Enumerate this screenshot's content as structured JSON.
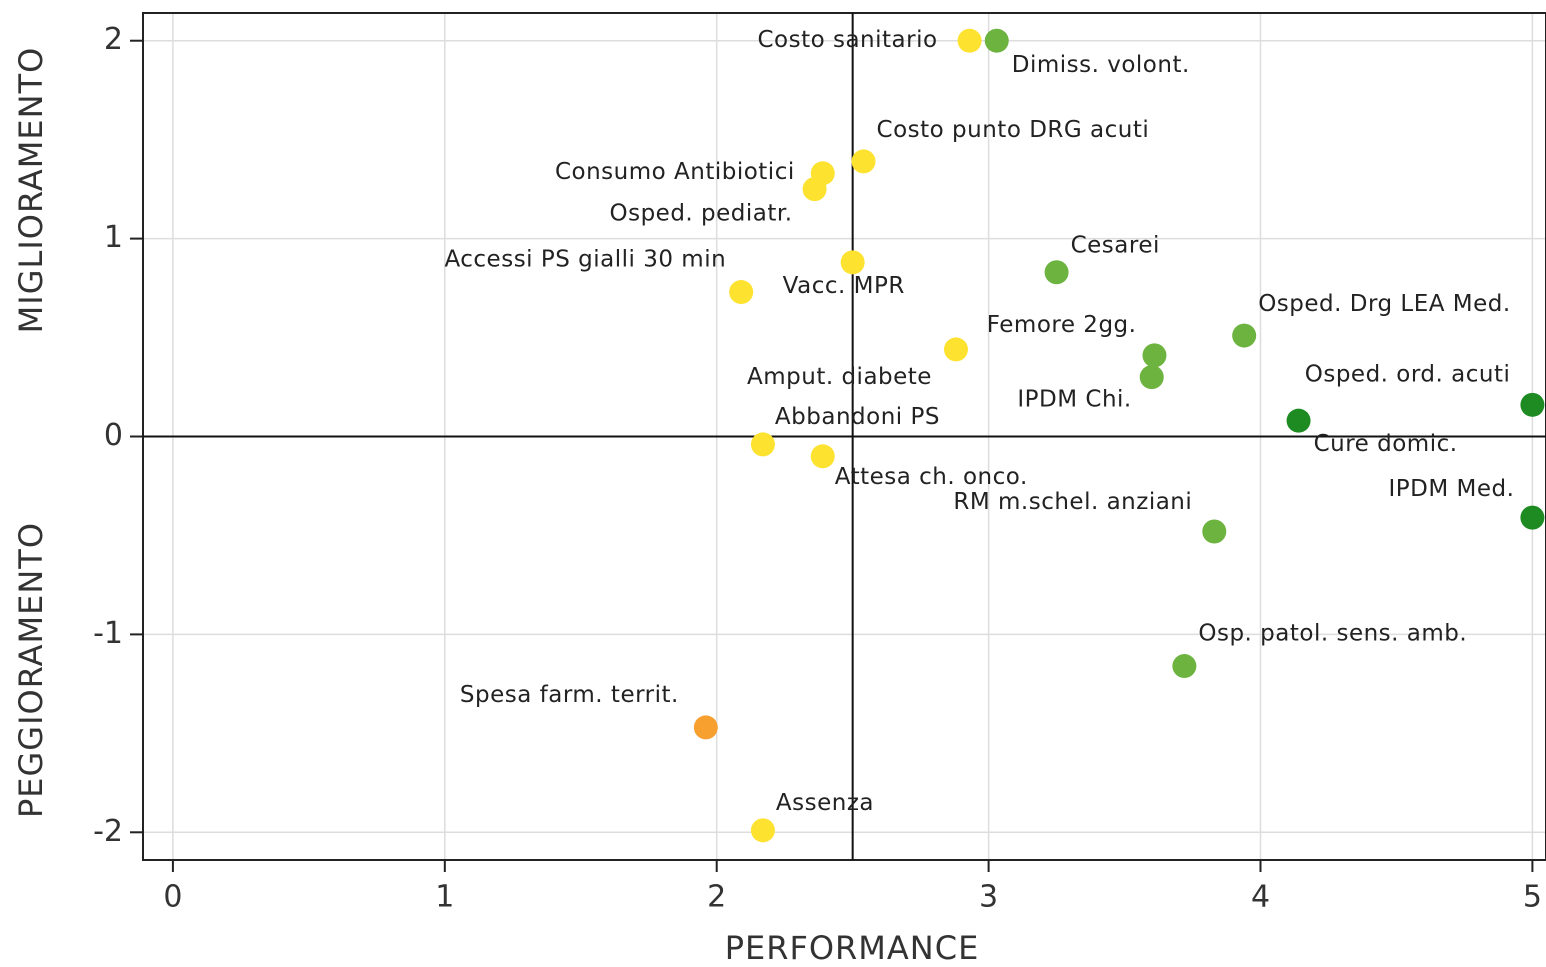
{
  "chart_data": {
    "type": "scatter",
    "xlabel": "PERFORMANCE",
    "ylabel_top": "MIGLIORAMENTO",
    "ylabel_bottom": "PEGGIORAMENTO",
    "xlim": [
      -0.11,
      5.05
    ],
    "ylim": [
      -2.14,
      2.14
    ],
    "xticks": [
      0,
      1,
      2,
      3,
      4,
      5
    ],
    "yticks": [
      -2,
      -1,
      0,
      1,
      2
    ],
    "grid": true,
    "reference_lines": {
      "x": 2.5,
      "y": 0
    },
    "points": [
      {
        "label": "Costo sanitario",
        "x": 2.93,
        "y": 2.0,
        "color": "#fde230"
      },
      {
        "label": "Dimiss. volont.",
        "x": 3.03,
        "y": 2.0,
        "color": "#6db33f"
      },
      {
        "label": "Costo punto DRG acuti",
        "x": 2.54,
        "y": 1.39,
        "color": "#fde230"
      },
      {
        "label": "Consumo Antibiotici",
        "x": 2.39,
        "y": 1.33,
        "color": "#fde230"
      },
      {
        "label": "Osped. pediatr.",
        "x": 2.36,
        "y": 1.25,
        "color": "#fde230"
      },
      {
        "label": "Vacc. MPR",
        "x": 2.5,
        "y": 0.88,
        "color": "#fde230"
      },
      {
        "label": "Accessi PS gialli 30 min",
        "x": 2.09,
        "y": 0.73,
        "color": "#fde230"
      },
      {
        "label": "Cesarei",
        "x": 3.25,
        "y": 0.83,
        "color": "#6db33f"
      },
      {
        "label": "Osped. Drg LEA Med.",
        "x": 3.94,
        "y": 0.51,
        "color": "#6db33f"
      },
      {
        "label": "Femore 2gg.",
        "x": 3.61,
        "y": 0.41,
        "color": "#6db33f"
      },
      {
        "label": "IPDM Chi.",
        "x": 3.6,
        "y": 0.3,
        "color": "#6db33f"
      },
      {
        "label": "Amput. diabete",
        "x": 2.88,
        "y": 0.44,
        "color": "#fde230"
      },
      {
        "label": "Osped.  ord. acuti",
        "x": 5.0,
        "y": 0.16,
        "color": "#1e8a22"
      },
      {
        "label": "Cure domic.",
        "x": 4.14,
        "y": 0.08,
        "color": "#1e8a22"
      },
      {
        "label": "Abbandoni PS",
        "x": 2.17,
        "y": -0.04,
        "color": "#fde230"
      },
      {
        "label": "Attesa ch. onco.",
        "x": 2.39,
        "y": -0.1,
        "color": "#fde230"
      },
      {
        "label": "IPDM Med.",
        "x": 5.0,
        "y": -0.41,
        "color": "#1e8a22"
      },
      {
        "label": "RM m.schel. anziani",
        "x": 3.83,
        "y": -0.48,
        "color": "#6db33f"
      },
      {
        "label": "Osp. patol. sens. amb.",
        "x": 3.72,
        "y": -1.16,
        "color": "#6db33f"
      },
      {
        "label": "Spesa farm. territ.",
        "x": 1.96,
        "y": -1.47,
        "color": "#f7a030"
      },
      {
        "label": "Assenza",
        "x": 2.17,
        "y": -1.99,
        "color": "#fde230"
      }
    ]
  }
}
